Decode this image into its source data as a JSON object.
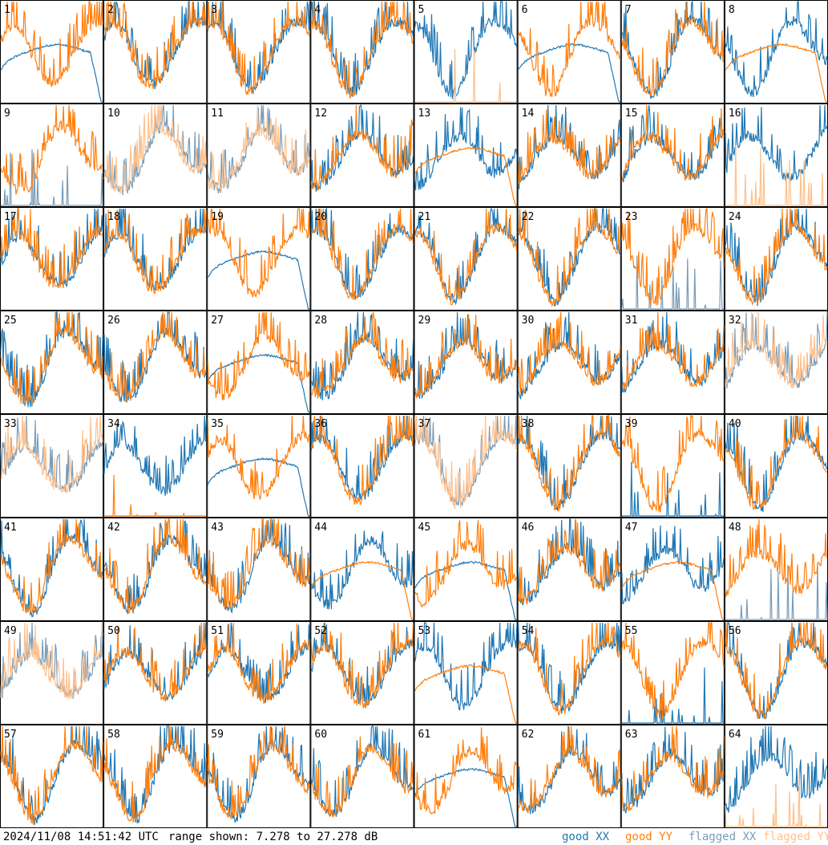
{
  "chart_data": {
    "type": "line",
    "panels": [
      1,
      2,
      3,
      4,
      5,
      6,
      7,
      8,
      9,
      10,
      11,
      12,
      13,
      14,
      15,
      16,
      17,
      18,
      19,
      20,
      21,
      22,
      23,
      24,
      25,
      26,
      27,
      28,
      29,
      30,
      31,
      32,
      33,
      34,
      35,
      36,
      37,
      38,
      39,
      40,
      41,
      42,
      43,
      44,
      45,
      46,
      47,
      48,
      49,
      50,
      51,
      52,
      53,
      54,
      55,
      56,
      57,
      58,
      59,
      60,
      61,
      62,
      63,
      64
    ],
    "ylim": [
      7.278,
      27.278
    ],
    "grid": false,
    "legend_position": "bottom-right",
    "series": [
      {
        "name": "good XX",
        "color": "#1f77b4"
      },
      {
        "name": "good YY",
        "color": "#ff7f0e"
      },
      {
        "name": "flagged XX",
        "color": "#7a9cb8"
      },
      {
        "name": "flagged YY",
        "color": "#ffc08c"
      }
    ],
    "panel_states": {
      "flagged_both": [
        10,
        11,
        32,
        33,
        37,
        49
      ],
      "flagged_xx": [
        9,
        23,
        48
      ],
      "flagged_yy": [
        5,
        16,
        64
      ],
      "dropout_xx": [
        39,
        55
      ],
      "dropout_yy": [
        34
      ],
      "smooth_xx": [
        1,
        6,
        19,
        27,
        35,
        45,
        61
      ],
      "smooth_yy": [
        8,
        13,
        44,
        47,
        53
      ]
    }
  },
  "footer": {
    "timestamp": "2024/11/08 14:51:42 UTC",
    "range_text": "range shown: 7.278 to 27.278 dB"
  },
  "legend": {
    "good_xx": {
      "prefix": "good ",
      "pol": "XX"
    },
    "good_yy": {
      "prefix": "good ",
      "pol": "YY"
    },
    "flagged_xx": {
      "prefix": "flagged ",
      "pol": "XX"
    },
    "flagged_yy": {
      "prefix": "flagged ",
      "pol": "YY"
    }
  }
}
